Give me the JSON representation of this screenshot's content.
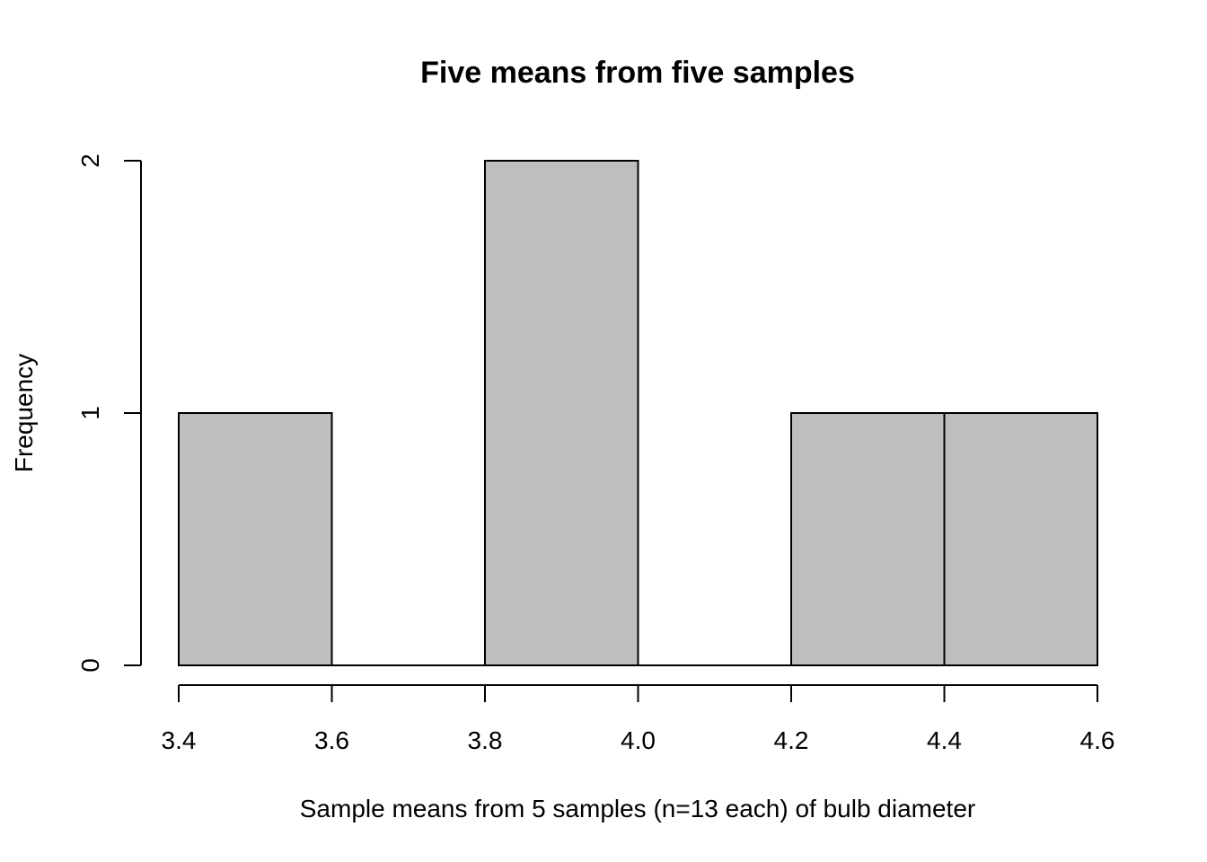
{
  "chart_data": {
    "type": "bar",
    "subtype": "histogram",
    "title": "Five means from five samples",
    "xlabel": "Sample means from 5 samples (n=13 each) of bulb diameter",
    "ylabel": "Frequency",
    "bins": [
      {
        "start": 3.4,
        "end": 3.6,
        "count": 1
      },
      {
        "start": 3.6,
        "end": 3.8,
        "count": 0
      },
      {
        "start": 3.8,
        "end": 4.0,
        "count": 2
      },
      {
        "start": 4.0,
        "end": 4.2,
        "count": 0
      },
      {
        "start": 4.2,
        "end": 4.4,
        "count": 1
      },
      {
        "start": 4.4,
        "end": 4.6,
        "count": 1
      }
    ],
    "xlim": [
      3.4,
      4.6
    ],
    "ylim": [
      0,
      2
    ],
    "x_ticks": [
      "3.4",
      "3.6",
      "3.8",
      "4.0",
      "4.2",
      "4.4",
      "4.6"
    ],
    "y_ticks": [
      "0",
      "1",
      "2"
    ],
    "bar_color": "#bebebe",
    "grid": false,
    "legend": "none"
  }
}
